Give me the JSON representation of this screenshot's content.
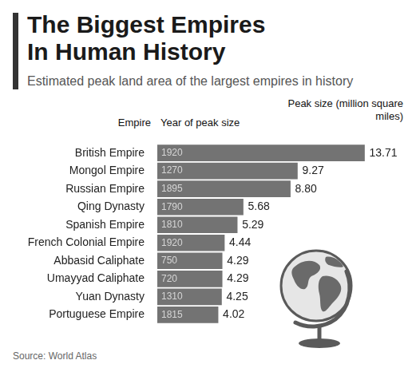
{
  "chart_data": {
    "type": "bar",
    "title": "The Biggest Empires In Human History",
    "subtitle": "Estimated peak land area of the largest empires in history",
    "category_header": "Empire",
    "year_header": "Year of peak size",
    "value_header": "Peak size (million square miles)",
    "categories": [
      "British Empire",
      "Mongol Empire",
      "Russian Empire",
      "Qing Dynasty",
      "Spanish Empire",
      "French Colonial Empire",
      "Abbasid Caliphate",
      "Umayyad Caliphate",
      "Yuan Dynasty",
      "Portuguese Empire"
    ],
    "years": [
      1920,
      1270,
      1895,
      1790,
      1810,
      1920,
      750,
      720,
      1310,
      1815
    ],
    "values": [
      13.71,
      9.27,
      8.8,
      5.68,
      5.29,
      4.44,
      4.29,
      4.29,
      4.25,
      4.02
    ],
    "value_labels": [
      "13.71",
      "9.27",
      "8.80",
      "5.68",
      "5.29",
      "4.44",
      "4.29",
      "4.29",
      "4.25",
      "4.02"
    ],
    "color": "#737373",
    "orientation": "horizontal",
    "xlim": [
      0,
      14
    ],
    "grid": false,
    "tick_labels": "y",
    "data_labels": true,
    "source": "Source: World Atlas"
  }
}
